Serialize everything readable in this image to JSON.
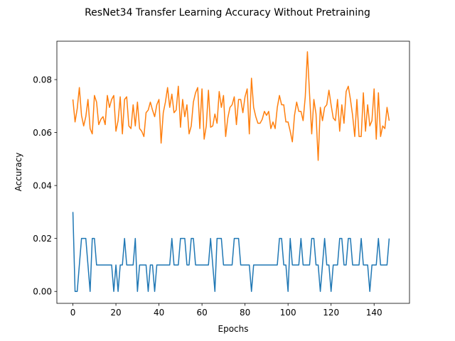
{
  "chart_data": {
    "type": "line",
    "title": "ResNet34 Transfer Learning Accuracy Without Pretraining",
    "xlabel": "Epochs",
    "ylabel": "Accuracy",
    "xlim": [
      -7.45,
      156.45
    ],
    "ylim": [
      -0.0045,
      0.0945
    ],
    "xticks": [
      0,
      20,
      40,
      60,
      80,
      100,
      120,
      140
    ],
    "yticks": [
      0.0,
      0.02,
      0.04,
      0.06,
      0.08
    ],
    "ytick_labels": [
      "0.00",
      "0.02",
      "0.04",
      "0.06",
      "0.08"
    ],
    "series": [
      {
        "color": "#1f77b4",
        "x_start": 0,
        "values": [
          0.03,
          0,
          0,
          0.01,
          0.02,
          0.02,
          0.02,
          0.01,
          0,
          0.02,
          0.02,
          0.01,
          0.01,
          0.01,
          0.01,
          0.01,
          0.01,
          0.01,
          0.01,
          0,
          0.01,
          0,
          0.01,
          0.01,
          0.02,
          0.01,
          0.01,
          0.01,
          0.01,
          0.02,
          0,
          0.01,
          0.01,
          0.01,
          0.01,
          0,
          0.01,
          0.01,
          0,
          0.01,
          0.01,
          0.01,
          0.01,
          0.01,
          0.01,
          0.01,
          0.02,
          0.01,
          0.01,
          0.01,
          0.02,
          0.02,
          0.02,
          0.01,
          0.01,
          0.02,
          0.02,
          0.01,
          0.01,
          0.01,
          0.01,
          0.01,
          0.01,
          0.01,
          0.02,
          0.01,
          0,
          0.02,
          0.02,
          0.02,
          0.01,
          0.01,
          0.01,
          0.01,
          0.01,
          0.02,
          0.02,
          0.02,
          0.01,
          0.01,
          0.01,
          0.01,
          0.01,
          0,
          0.01,
          0.01,
          0.01,
          0.01,
          0.01,
          0.01,
          0.01,
          0.01,
          0.01,
          0.01,
          0.01,
          0.01,
          0.02,
          0.02,
          0.01,
          0.01,
          0,
          0.02,
          0.01,
          0.01,
          0.01,
          0.01,
          0.02,
          0.01,
          0.01,
          0.01,
          0.01,
          0.02,
          0.02,
          0.01,
          0.01,
          0,
          0.01,
          0.02,
          0.01,
          0.01,
          0,
          0.01,
          0.01,
          0.01,
          0.02,
          0.02,
          0.01,
          0.01,
          0.02,
          0.02,
          0.01,
          0.01,
          0.01,
          0.01,
          0.02,
          0.01,
          0.01,
          0.01,
          0,
          0.01,
          0.01,
          0.01,
          0.02,
          0.01,
          0.01,
          0.01,
          0.01,
          0.02
        ]
      },
      {
        "color": "#ff7f0e",
        "x_start": 0,
        "values": [
          0.0725,
          0.064,
          0.069,
          0.077,
          0.0665,
          0.0625,
          0.066,
          0.0725,
          0.0615,
          0.0595,
          0.074,
          0.0715,
          0.063,
          0.065,
          0.066,
          0.063,
          0.074,
          0.0695,
          0.0725,
          0.074,
          0.0605,
          0.0645,
          0.0735,
          0.0595,
          0.0725,
          0.0735,
          0.0625,
          0.0615,
          0.0705,
          0.0625,
          0.0715,
          0.0615,
          0.0605,
          0.0585,
          0.0675,
          0.0685,
          0.0715,
          0.0685,
          0.066,
          0.0705,
          0.0725,
          0.056,
          0.0675,
          0.0715,
          0.077,
          0.0695,
          0.0745,
          0.0675,
          0.0685,
          0.0775,
          0.062,
          0.0725,
          0.066,
          0.0705,
          0.0595,
          0.0625,
          0.0715,
          0.075,
          0.077,
          0.0615,
          0.0765,
          0.0575,
          0.0625,
          0.076,
          0.062,
          0.0625,
          0.067,
          0.0635,
          0.0755,
          0.0695,
          0.074,
          0.0585,
          0.0655,
          0.0695,
          0.0705,
          0.0735,
          0.063,
          0.0725,
          0.0725,
          0.0675,
          0.0735,
          0.0765,
          0.0595,
          0.0805,
          0.0695,
          0.066,
          0.0635,
          0.0635,
          0.065,
          0.068,
          0.0665,
          0.068,
          0.0615,
          0.064,
          0.0615,
          0.0695,
          0.074,
          0.0705,
          0.0705,
          0.064,
          0.064,
          0.0605,
          0.0565,
          0.0665,
          0.0715,
          0.068,
          0.068,
          0.0645,
          0.0735,
          0.0905,
          0.0745,
          0.0595,
          0.0725,
          0.067,
          0.0495,
          0.0695,
          0.0645,
          0.0695,
          0.0705,
          0.076,
          0.0705,
          0.0655,
          0.0645,
          0.0725,
          0.0605,
          0.0705,
          0.0635,
          0.0755,
          0.0775,
          0.0725,
          0.0665,
          0.0585,
          0.0725,
          0.0585,
          0.0585,
          0.075,
          0.0605,
          0.0705,
          0.0625,
          0.0645,
          0.0765,
          0.0575,
          0.075,
          0.0585,
          0.0625,
          0.0615,
          0.0695,
          0.0645
        ]
      }
    ]
  }
}
